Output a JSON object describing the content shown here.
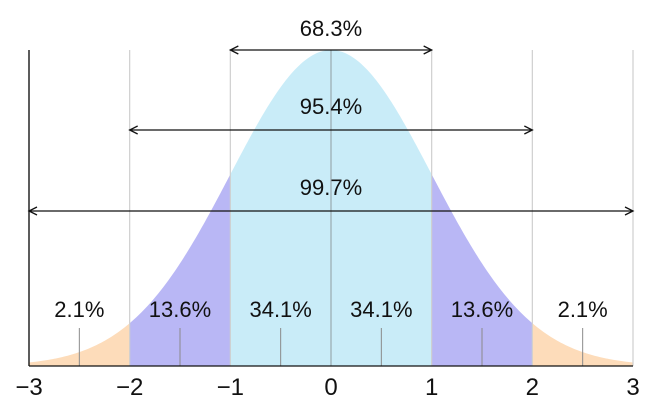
{
  "chart_data": {
    "type": "area",
    "x_ticks": [
      "−3",
      "−2",
      "−1",
      "0",
      "1",
      "2",
      "3"
    ],
    "x_tick_values": [
      -3,
      -2,
      -1,
      0,
      1,
      2,
      3
    ],
    "xlim": [
      -3,
      3
    ],
    "curve": "standard normal density",
    "bands": [
      {
        "from": -3,
        "to": -2,
        "label": "2.1%",
        "value": 2.1,
        "color": "#fddcba"
      },
      {
        "from": -2,
        "to": -1,
        "label": "13.6%",
        "value": 13.6,
        "color": "#b9b7f5"
      },
      {
        "from": -1,
        "to": 0,
        "label": "34.1%",
        "value": 34.1,
        "color": "#c9ecf8"
      },
      {
        "from": 0,
        "to": 1,
        "label": "34.1%",
        "value": 34.1,
        "color": "#c9ecf8"
      },
      {
        "from": 1,
        "to": 2,
        "label": "13.6%",
        "value": 13.6,
        "color": "#b9b7f5"
      },
      {
        "from": 2,
        "to": 3,
        "label": "2.1%",
        "value": 2.1,
        "color": "#fddcba"
      }
    ],
    "ranges": [
      {
        "from": -1,
        "to": 1,
        "label": "68.3%",
        "value": 68.3
      },
      {
        "from": -2,
        "to": 2,
        "label": "95.4%",
        "value": 95.4
      },
      {
        "from": -3,
        "to": 3,
        "label": "99.7%",
        "value": 99.7
      }
    ],
    "minor_ticks": [
      -2.5,
      -1.5,
      -0.5,
      0.5,
      1.5,
      2.5
    ],
    "grid": true,
    "colors": {
      "gridline": "#cfcfcf",
      "axis": "#111111",
      "arrow": "#111111",
      "center_line": "#9aa9b0"
    }
  }
}
